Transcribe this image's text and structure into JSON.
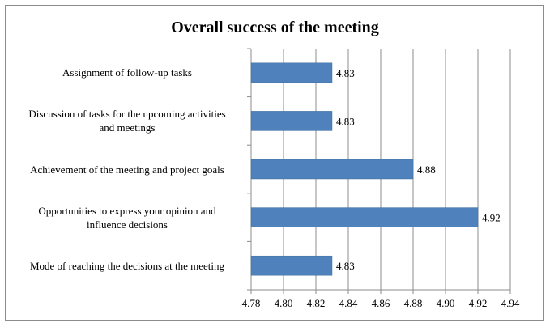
{
  "chart_data": {
    "type": "bar",
    "orientation": "horizontal",
    "title": "Overall success of the meeting",
    "categories": [
      "Assignment of follow-up tasks",
      "Discussion of tasks for the upcoming activities and meetings",
      "Achievement of the meeting and project goals",
      "Opportunities to express your opinion and influence decisions",
      "Mode of reaching the decisions at the meeting"
    ],
    "category_lines": [
      [
        "Assignment of follow-up tasks"
      ],
      [
        "Discussion of tasks for the upcoming activities",
        "and meetings"
      ],
      [
        "Achievement of the meeting and project goals"
      ],
      [
        "Opportunities to express your opinion and",
        "influence decisions"
      ],
      [
        "Mode of reaching the decisions at the meeting"
      ]
    ],
    "values": [
      4.83,
      4.83,
      4.88,
      4.92,
      4.83
    ],
    "value_labels": [
      "4.83",
      "4.83",
      "4.88",
      "4.92",
      "4.83"
    ],
    "xlim": [
      4.78,
      4.94
    ],
    "xticks": [
      "4.78",
      "4.80",
      "4.82",
      "4.84",
      "4.86",
      "4.88",
      "4.90",
      "4.92",
      "4.94"
    ],
    "grid": "vertical",
    "bar_color": "#4f81bd",
    "legend": "none"
  }
}
